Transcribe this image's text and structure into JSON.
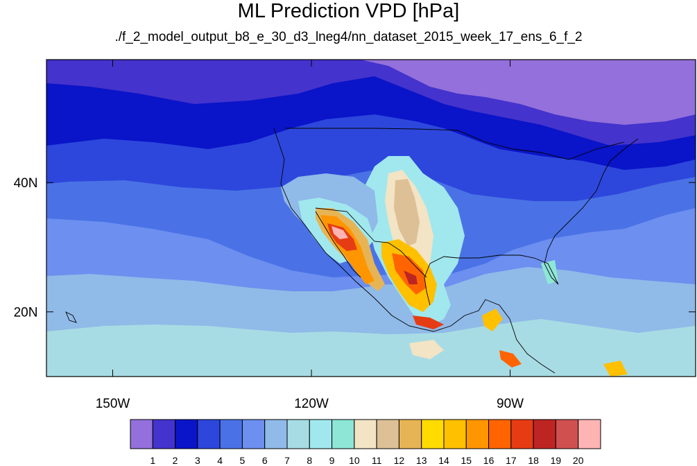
{
  "title": "ML Prediction VPD [hPa]",
  "subtitle": "./f_2_model_output_b8_e_30_d3_lneg4/nn_dataset_2015_week_17_ens_6_f_2",
  "map": {
    "lon_range": [
      -160,
      -62
    ],
    "lat_range": [
      10,
      59
    ],
    "x_ticks": [
      {
        "lon": -150,
        "label": "150W"
      },
      {
        "lon": -120,
        "label": "120W"
      },
      {
        "lon": -90,
        "label": "90W"
      }
    ],
    "y_ticks": [
      {
        "lat": 40,
        "label": "40N"
      },
      {
        "lat": 20,
        "label": "20N"
      }
    ]
  },
  "colorbar": {
    "colors": [
      "#9370db",
      "#4433cc",
      "#0a14c8",
      "#2d47dc",
      "#4a72e6",
      "#6c8ff0",
      "#90bae8",
      "#a8dce4",
      "#a0e8ee",
      "#8ee6d6",
      "#f2e4c4",
      "#ddc095",
      "#e7b455",
      "#ffdb00",
      "#ffc000",
      "#ff9600",
      "#ff6400",
      "#e63c14",
      "#bd2523",
      "#d05050",
      "#ffb4b4"
    ],
    "labels": [
      "1",
      "2",
      "3",
      "4",
      "5",
      "6",
      "7",
      "8",
      "9",
      "10",
      "11",
      "12",
      "13",
      "14",
      "15",
      "16",
      "17",
      "18",
      "19",
      "20"
    ]
  }
}
